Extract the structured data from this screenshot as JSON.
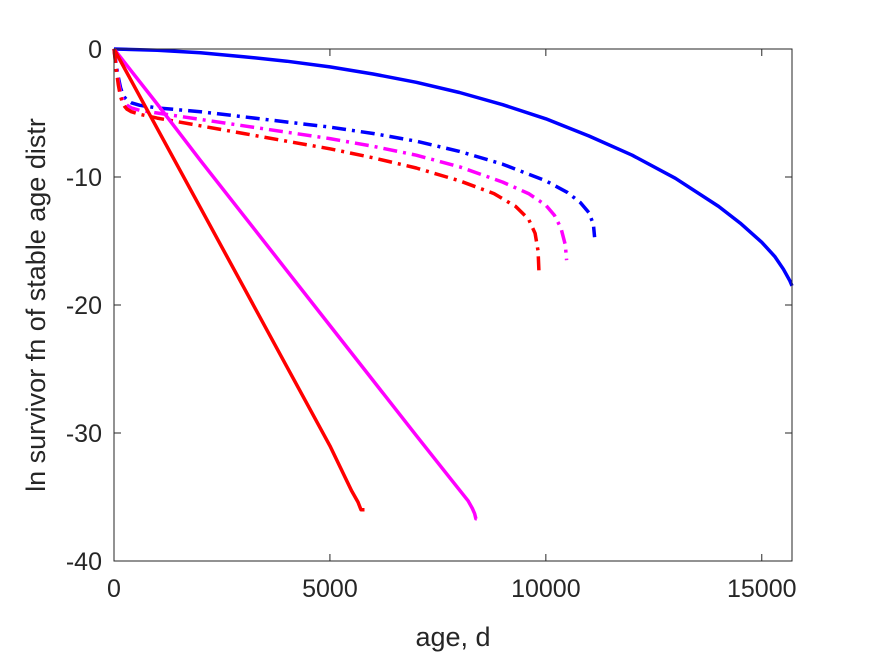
{
  "chart_data": {
    "type": "line",
    "xlabel": "age, d",
    "ylabel": "ln survivor fn of stable age distr",
    "xlim": [
      0,
      15700
    ],
    "ylim": [
      -40,
      0
    ],
    "xticks": [
      0,
      5000,
      10000,
      15000
    ],
    "yticks": [
      0,
      -10,
      -20,
      -30,
      -40
    ],
    "xtick_labels": [
      "0",
      "5000",
      "10000",
      "15000"
    ],
    "ytick_labels": [
      "0",
      "-10",
      "-20",
      "-30",
      "-40"
    ],
    "grid": false,
    "series": [
      {
        "color": "#0000ff",
        "style": "solid",
        "x": [
          0,
          1000,
          2000,
          3000,
          4000,
          5000,
          6000,
          7000,
          8000,
          9000,
          10000,
          11000,
          12000,
          13000,
          14000,
          14500,
          15000,
          15300,
          15500,
          15650,
          15700
        ],
        "y": [
          0,
          -0.1,
          -0.3,
          -0.6,
          -0.95,
          -1.4,
          -1.95,
          -2.6,
          -3.4,
          -4.35,
          -5.45,
          -6.8,
          -8.3,
          -10.1,
          -12.3,
          -13.6,
          -15.1,
          -16.2,
          -17.2,
          -18.1,
          -18.5
        ]
      },
      {
        "color": "#0000ff",
        "style": "dashdot",
        "x": [
          0,
          50,
          100,
          150,
          200,
          250,
          300,
          400,
          600,
          1000,
          2000,
          3000,
          4000,
          5000,
          6000,
          7000,
          8000,
          9000,
          10000,
          10500,
          10800,
          11000,
          11100,
          11130
        ],
        "y": [
          0,
          -1.2,
          -2.2,
          -3.0,
          -3.5,
          -3.8,
          -4.0,
          -4.2,
          -4.4,
          -4.6,
          -4.9,
          -5.3,
          -5.7,
          -6.1,
          -6.6,
          -7.2,
          -8.0,
          -9.0,
          -10.3,
          -11.2,
          -12.0,
          -12.8,
          -13.7,
          -14.7
        ]
      },
      {
        "color": "#ff00ff",
        "style": "dashdot",
        "x": [
          0,
          50,
          100,
          150,
          200,
          250,
          300,
          400,
          600,
          1000,
          2000,
          3000,
          4000,
          5000,
          6000,
          7000,
          8000,
          9000,
          9600,
          10000,
          10200,
          10350,
          10450,
          10480
        ],
        "y": [
          0,
          -1.4,
          -2.5,
          -3.4,
          -3.9,
          -4.2,
          -4.4,
          -4.6,
          -4.8,
          -5.0,
          -5.5,
          -6.0,
          -6.5,
          -7.0,
          -7.6,
          -8.3,
          -9.2,
          -10.4,
          -11.3,
          -12.2,
          -13.0,
          -14.0,
          -15.3,
          -16.5
        ]
      },
      {
        "color": "#ff0000",
        "style": "dashdot",
        "x": [
          0,
          50,
          100,
          150,
          200,
          250,
          300,
          400,
          600,
          1000,
          2000,
          3000,
          4000,
          5000,
          6000,
          7000,
          8000,
          8800,
          9300,
          9600,
          9750,
          9820,
          9840
        ],
        "y": [
          0,
          -1.6,
          -2.8,
          -3.7,
          -4.2,
          -4.5,
          -4.7,
          -4.9,
          -5.1,
          -5.4,
          -6.0,
          -6.6,
          -7.2,
          -7.8,
          -8.5,
          -9.3,
          -10.3,
          -11.3,
          -12.3,
          -13.3,
          -14.4,
          -15.8,
          -17.3
        ]
      },
      {
        "color": "#ff00ff",
        "style": "solid",
        "x": [
          0,
          1000,
          2000,
          3000,
          4000,
          5000,
          6000,
          7000,
          7800,
          8200,
          8300,
          8350,
          8380,
          8400
        ],
        "y": [
          0,
          -4.3,
          -8.7,
          -13.0,
          -17.3,
          -21.6,
          -25.9,
          -30.2,
          -33.6,
          -35.3,
          -35.9,
          -36.3,
          -36.7,
          -36.7
        ]
      },
      {
        "color": "#ff0000",
        "style": "solid",
        "x": [
          0,
          1000,
          2000,
          3000,
          4000,
          5000,
          5500,
          5650,
          5720,
          5760,
          5800
        ],
        "y": [
          0,
          -6.2,
          -12.4,
          -18.6,
          -24.8,
          -31.0,
          -34.5,
          -35.4,
          -36.0,
          -36.0,
          -36.0
        ]
      }
    ]
  }
}
